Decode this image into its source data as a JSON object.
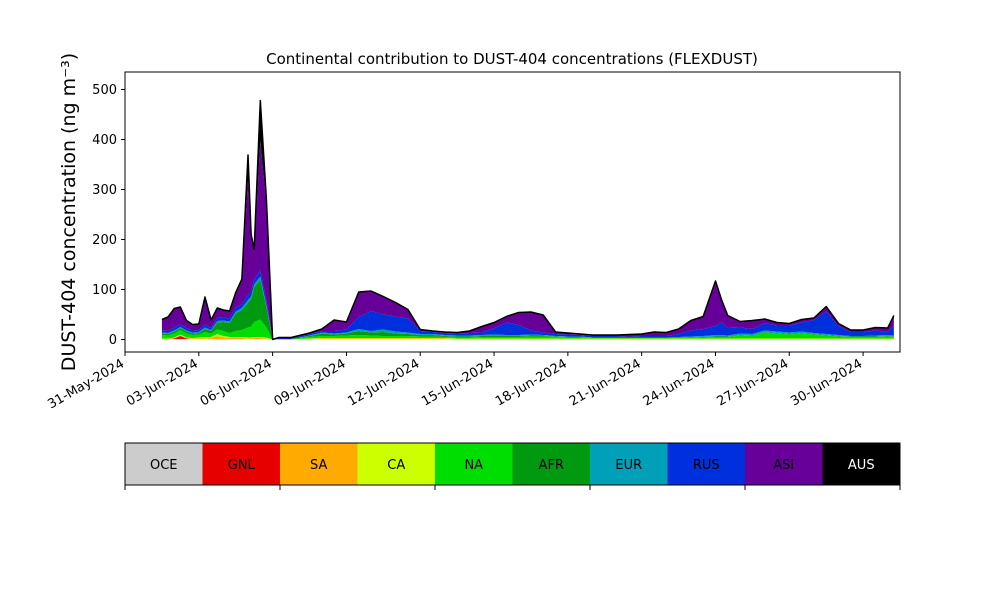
{
  "chart_data": {
    "type": "area",
    "title": "Continental contribution to DUST-404 concentrations (FLEXDUST)",
    "ylabel": "DUST-404 concentration (ng m⁻³)",
    "xlabel": "",
    "ylim": [
      -25,
      535
    ],
    "xlim": [
      "2024-05-31T00:00",
      "2024-07-01T12:00"
    ],
    "yticks": [
      0,
      100,
      200,
      300,
      400,
      500
    ],
    "xticks": [
      "31-May-2024",
      "03-Jun-2024",
      "06-Jun-2024",
      "09-Jun-2024",
      "12-Jun-2024",
      "15-Jun-2024",
      "18-Jun-2024",
      "21-Jun-2024",
      "24-Jun-2024",
      "27-Jun-2024",
      "30-Jun-2024"
    ],
    "grid": false,
    "stacked": true,
    "series_order": [
      "OCE",
      "GNL",
      "SA",
      "CA",
      "NA",
      "AFR",
      "EUR",
      "RUS",
      "ASI",
      "AUS"
    ],
    "colors": {
      "OCE": "#cccccc",
      "GNL": "#e60000",
      "SA": "#ffaa00",
      "CA": "#ccff00",
      "NA": "#00dd00",
      "AFR": "#009a10",
      "EUR": "#00a0b8",
      "RUS": "#0030dd",
      "ASI": "#660099",
      "AUS": "#000000"
    },
    "x": [
      "2024-06-01T12:00",
      "2024-06-01T18:00",
      "2024-06-02T00:00",
      "2024-06-02T06:00",
      "2024-06-02T12:00",
      "2024-06-02T18:00",
      "2024-06-03T00:00",
      "2024-06-03T06:00",
      "2024-06-03T12:00",
      "2024-06-03T18:00",
      "2024-06-04T00:00",
      "2024-06-04T06:00",
      "2024-06-04T12:00",
      "2024-06-04T18:00",
      "2024-06-05T00:00",
      "2024-06-05T03:00",
      "2024-06-05T06:00",
      "2024-06-05T12:00",
      "2024-06-05T18:00",
      "2024-06-06T00:00",
      "2024-06-06T06:00",
      "2024-06-06T12:00",
      "2024-06-06T18:00",
      "2024-06-07T00:00",
      "2024-06-07T12:00",
      "2024-06-08T00:00",
      "2024-06-08T12:00",
      "2024-06-09T00:00",
      "2024-06-09T12:00",
      "2024-06-10T00:00",
      "2024-06-10T12:00",
      "2024-06-11T00:00",
      "2024-06-11T12:00",
      "2024-06-12T00:00",
      "2024-06-12T12:00",
      "2024-06-13T00:00",
      "2024-06-13T12:00",
      "2024-06-14T00:00",
      "2024-06-14T12:00",
      "2024-06-15T00:00",
      "2024-06-15T12:00",
      "2024-06-16T00:00",
      "2024-06-16T12:00",
      "2024-06-17T00:00",
      "2024-06-17T12:00",
      "2024-06-18T00:00",
      "2024-06-18T12:00",
      "2024-06-19T00:00",
      "2024-06-19T12:00",
      "2024-06-20T00:00",
      "2024-06-20T12:00",
      "2024-06-21T00:00",
      "2024-06-21T12:00",
      "2024-06-22T00:00",
      "2024-06-22T12:00",
      "2024-06-23T00:00",
      "2024-06-23T12:00",
      "2024-06-24T00:00",
      "2024-06-24T06:00",
      "2024-06-24T12:00",
      "2024-06-25T00:00",
      "2024-06-25T12:00",
      "2024-06-26T00:00",
      "2024-06-26T12:00",
      "2024-06-27T00:00",
      "2024-06-27T12:00",
      "2024-06-28T00:00",
      "2024-06-28T12:00",
      "2024-06-29T00:00",
      "2024-06-29T12:00",
      "2024-06-30T00:00",
      "2024-06-30T12:00",
      "2024-07-01T00:00",
      "2024-07-01T06:00"
    ],
    "series": [
      {
        "name": "OCE",
        "values": [
          1,
          1,
          1,
          1,
          1,
          1,
          1,
          1,
          1,
          1,
          1,
          1,
          1,
          1,
          1,
          1,
          1,
          1,
          1,
          0,
          0,
          0,
          0,
          1,
          1,
          1,
          1,
          1,
          1,
          1,
          1,
          1,
          1,
          1,
          1,
          1,
          1,
          1,
          1,
          1,
          1,
          1,
          1,
          1,
          1,
          1,
          1,
          1,
          1,
          1,
          1,
          1,
          1,
          1,
          1,
          1,
          1,
          1,
          1,
          1,
          1,
          1,
          1,
          1,
          1,
          1,
          1,
          1,
          1,
          1,
          1,
          1,
          1,
          1
        ]
      },
      {
        "name": "GNL",
        "values": [
          0,
          0,
          1,
          6,
          1,
          0,
          0,
          0,
          0,
          0,
          0,
          0,
          0,
          0,
          0,
          0,
          0,
          0,
          0,
          0,
          0,
          0,
          0,
          0,
          0,
          0,
          0,
          0,
          0,
          0,
          0,
          0,
          0,
          0,
          0,
          0,
          0,
          0,
          0,
          0,
          0,
          0,
          0,
          0,
          0,
          0,
          0,
          0,
          0,
          0,
          0,
          0,
          0,
          0,
          0,
          0,
          0,
          0,
          0,
          0,
          0,
          0,
          0,
          0,
          0,
          0,
          0,
          0,
          0,
          0,
          0,
          0,
          0,
          0
        ]
      },
      {
        "name": "SA",
        "values": [
          0,
          0,
          1,
          2,
          1,
          1,
          1,
          1,
          2,
          6,
          3,
          2,
          2,
          2,
          1,
          1,
          2,
          2,
          1,
          0,
          0,
          0,
          0,
          0,
          0,
          1,
          1,
          1,
          1,
          1,
          1,
          1,
          1,
          1,
          1,
          1,
          0,
          0,
          0,
          0,
          0,
          0,
          0,
          0,
          0,
          0,
          0,
          0,
          0,
          0,
          0,
          0,
          0,
          0,
          0,
          0,
          0,
          0,
          0,
          0,
          0,
          0,
          0,
          0,
          0,
          0,
          0,
          0,
          0,
          0,
          0,
          0,
          0,
          0
        ]
      },
      {
        "name": "CA",
        "values": [
          1,
          1,
          1,
          1,
          1,
          1,
          2,
          3,
          2,
          4,
          3,
          2,
          2,
          2,
          2,
          2,
          2,
          2,
          2,
          0,
          0,
          0,
          0,
          0,
          1,
          1,
          1,
          1,
          1,
          1,
          1,
          1,
          1,
          1,
          1,
          1,
          1,
          1,
          1,
          1,
          1,
          1,
          1,
          1,
          1,
          1,
          1,
          1,
          1,
          1,
          1,
          1,
          1,
          1,
          1,
          1,
          1,
          1,
          1,
          1,
          1,
          1,
          1,
          1,
          1,
          1,
          1,
          1,
          1,
          1,
          1,
          1,
          1,
          1
        ]
      },
      {
        "name": "NA",
        "values": [
          7,
          6,
          8,
          9,
          8,
          6,
          6,
          10,
          7,
          9,
          10,
          8,
          12,
          14,
          20,
          22,
          30,
          35,
          20,
          0,
          1,
          1,
          1,
          2,
          3,
          4,
          4,
          5,
          6,
          5,
          4,
          4,
          4,
          3,
          3,
          2,
          2,
          2,
          3,
          3,
          3,
          3,
          4,
          4,
          3,
          2,
          2,
          1,
          1,
          1,
          1,
          1,
          1,
          1,
          1,
          2,
          2,
          3,
          3,
          3,
          6,
          5,
          12,
          10,
          8,
          10,
          8,
          6,
          4,
          3,
          3,
          3,
          4,
          3
        ]
      },
      {
        "name": "AFR",
        "values": [
          3,
          3,
          4,
          4,
          4,
          3,
          3,
          6,
          5,
          14,
          18,
          20,
          35,
          40,
          50,
          55,
          70,
          80,
          40,
          0,
          0,
          0,
          0,
          0,
          2,
          5,
          3,
          4,
          8,
          6,
          8,
          5,
          4,
          3,
          3,
          2,
          2,
          2,
          2,
          2,
          2,
          2,
          2,
          2,
          1,
          1,
          1,
          0,
          0,
          0,
          0,
          0,
          0,
          0,
          0,
          0,
          1,
          1,
          1,
          1,
          1,
          1,
          1,
          1,
          1,
          1,
          1,
          1,
          1,
          1,
          1,
          1,
          1,
          1
        ]
      },
      {
        "name": "EUR",
        "values": [
          2,
          2,
          2,
          2,
          2,
          2,
          2,
          3,
          2,
          3,
          3,
          3,
          4,
          4,
          5,
          5,
          5,
          6,
          4,
          0,
          0,
          0,
          0,
          0,
          1,
          2,
          2,
          2,
          4,
          3,
          5,
          4,
          3,
          2,
          2,
          2,
          2,
          2,
          2,
          3,
          2,
          2,
          2,
          1,
          1,
          1,
          1,
          1,
          1,
          1,
          1,
          1,
          1,
          1,
          2,
          2,
          2,
          3,
          3,
          2,
          3,
          3,
          3,
          3,
          3,
          3,
          2,
          2,
          2,
          1,
          1,
          2,
          2,
          2
        ]
      },
      {
        "name": "RUS",
        "values": [
          5,
          4,
          6,
          5,
          5,
          4,
          4,
          6,
          4,
          6,
          6,
          6,
          8,
          8,
          10,
          10,
          10,
          12,
          10,
          0,
          1,
          1,
          1,
          2,
          3,
          3,
          5,
          6,
          24,
          40,
          30,
          30,
          28,
          6,
          4,
          4,
          4,
          5,
          5,
          12,
          25,
          20,
          8,
          5,
          4,
          4,
          3,
          3,
          3,
          3,
          2,
          3,
          3,
          3,
          6,
          12,
          14,
          18,
          25,
          15,
          12,
          10,
          15,
          12,
          14,
          18,
          26,
          45,
          18,
          8,
          8,
          10,
          6,
          20
        ]
      },
      {
        "name": "ASI",
        "values": [
          21,
          28,
          38,
          35,
          15,
          12,
          12,
          55,
          16,
          20,
          15,
          15,
          25,
          45,
          230,
          110,
          55,
          260,
          190,
          0,
          2,
          2,
          2,
          2,
          2,
          4,
          22,
          15,
          50,
          40,
          36,
          28,
          18,
          3,
          2,
          2,
          2,
          4,
          12,
          12,
          12,
          25,
          37,
          35,
          4,
          3,
          2,
          2,
          2,
          2,
          4,
          4,
          8,
          7,
          10,
          20,
          25,
          90,
          45,
          25,
          12,
          17,
          8,
          6,
          4,
          6,
          4,
          10,
          5,
          4,
          4,
          6,
          8,
          20
        ]
      },
      {
        "name": "AUS",
        "values": [
          0,
          0,
          0,
          0,
          0,
          0,
          0,
          0,
          0,
          0,
          0,
          0,
          5,
          5,
          50,
          5,
          5,
          80,
          10,
          0,
          0,
          0,
          0,
          0,
          0,
          0,
          0,
          0,
          0,
          0,
          0,
          0,
          0,
          0,
          0,
          0,
          0,
          0,
          0,
          0,
          0,
          0,
          0,
          0,
          0,
          0,
          0,
          0,
          0,
          0,
          0,
          0,
          0,
          0,
          0,
          0,
          0,
          0,
          0,
          0,
          0,
          0,
          0,
          0,
          0,
          0,
          0,
          0,
          0,
          0,
          0,
          0,
          0,
          0
        ]
      }
    ]
  },
  "legend": [
    {
      "label": "OCE",
      "color": "#cccccc",
      "text_color": "#000000"
    },
    {
      "label": "GNL",
      "color": "#e60000",
      "text_color": "#000000"
    },
    {
      "label": "SA",
      "color": "#ffaa00",
      "text_color": "#000000"
    },
    {
      "label": "CA",
      "color": "#ccff00",
      "text_color": "#000000"
    },
    {
      "label": "NA",
      "color": "#00dd00",
      "text_color": "#000000"
    },
    {
      "label": "AFR",
      "color": "#009a10",
      "text_color": "#000000"
    },
    {
      "label": "EUR",
      "color": "#00a0b8",
      "text_color": "#000000"
    },
    {
      "label": "RUS",
      "color": "#0030dd",
      "text_color": "#000000"
    },
    {
      "label": "ASI",
      "color": "#660099",
      "text_color": "#000000"
    },
    {
      "label": "AUS",
      "color": "#000000",
      "text_color": "#ffffff"
    }
  ]
}
